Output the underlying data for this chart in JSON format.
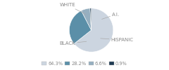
{
  "labels": [
    "WHITE",
    "HISPANIC",
    "BLACK",
    "A.I."
  ],
  "values": [
    64.3,
    28.2,
    6.6,
    0.9
  ],
  "colors": [
    "#ccd5e0",
    "#5b8fa8",
    "#96afc0",
    "#1e3a52"
  ],
  "legend_labels": [
    "64.3%",
    "28.2%",
    "6.6%",
    "0.9%"
  ],
  "startangle": 90,
  "background_color": "#ffffff",
  "label_color": "#888888",
  "label_fontsize": 5.0,
  "legend_fontsize": 4.8
}
